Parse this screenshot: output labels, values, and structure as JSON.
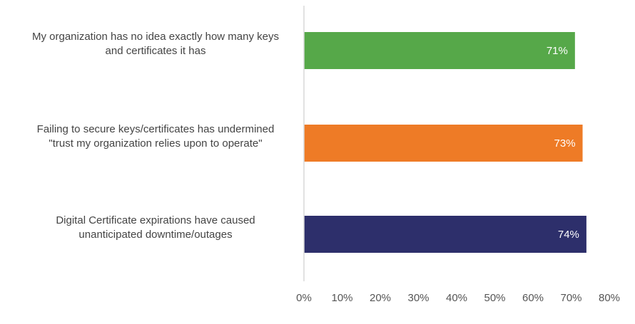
{
  "chart_data": {
    "type": "bar",
    "orientation": "horizontal",
    "categories": [
      [
        "My organization has no idea exactly how many keys",
        "and certificates it has"
      ],
      [
        "Failing to secure keys/certificates has undermined",
        "\"trust my organization relies upon to operate\""
      ],
      [
        "Digital Certificate expirations have caused",
        "unanticipated downtime/outages"
      ]
    ],
    "values": [
      71,
      73,
      74
    ],
    "value_labels": [
      "71%",
      "73%",
      "74%"
    ],
    "colors": [
      "#56A849",
      "#EE7B26",
      "#2D2F6B"
    ],
    "xlim": [
      0,
      80
    ],
    "xticks": [
      0,
      10,
      20,
      30,
      40,
      50,
      60,
      70,
      80
    ],
    "xtick_labels": [
      "0%",
      "10%",
      "20%",
      "30%",
      "40%",
      "50%",
      "60%",
      "70%",
      "80%"
    ],
    "title": "",
    "xlabel": "",
    "ylabel": "",
    "grid": false,
    "legend": "none"
  }
}
